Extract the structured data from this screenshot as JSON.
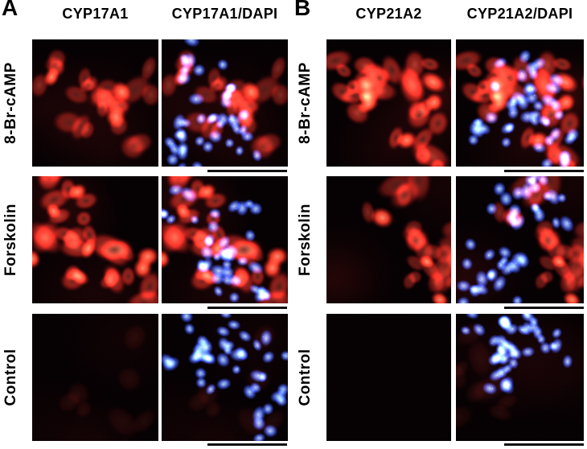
{
  "figure": {
    "type": "immunofluorescence-micrograph-grid",
    "panels": [
      {
        "label": "A",
        "column_headers": [
          "CYP17A1",
          "CYP17A1/DAPI"
        ],
        "row_labels": [
          "8-Br-cAMP",
          "Forskolin",
          "Control"
        ]
      },
      {
        "label": "B",
        "column_headers": [
          "CYP21A2",
          "CYP21A2/DAPI"
        ],
        "row_labels": [
          "8-Br-cAMP",
          "Forskolin",
          "Control"
        ]
      }
    ],
    "colors": {
      "red_stain": "#e23428",
      "dapi_blue": "#3f6cf0",
      "tile_background": "#060103",
      "scale_bar": "#111111",
      "page_background": "#ffffff",
      "text": "#000000"
    },
    "scale_bars": {
      "count": 6,
      "label": "",
      "color": "#111111"
    },
    "micrographs": [
      {
        "panel": "A",
        "treatment": "8-Br-cAMP",
        "channel": "CYP17A1",
        "red": "moderate",
        "dapi": false
      },
      {
        "panel": "A",
        "treatment": "8-Br-cAMP",
        "channel": "CYP17A1/DAPI",
        "red": "moderate",
        "dapi": true
      },
      {
        "panel": "A",
        "treatment": "Forskolin",
        "channel": "CYP17A1",
        "red": "strong",
        "dapi": false
      },
      {
        "panel": "A",
        "treatment": "Forskolin",
        "channel": "CYP17A1/DAPI",
        "red": "strong",
        "dapi": true
      },
      {
        "panel": "A",
        "treatment": "Control",
        "channel": "CYP17A1",
        "red": "faint",
        "dapi": false
      },
      {
        "panel": "A",
        "treatment": "Control",
        "channel": "CYP17A1/DAPI",
        "red": "faint",
        "dapi": true
      },
      {
        "panel": "B",
        "treatment": "8-Br-cAMP",
        "channel": "CYP21A2",
        "red": "strong",
        "dapi": false
      },
      {
        "panel": "B",
        "treatment": "8-Br-cAMP",
        "channel": "CYP21A2/DAPI",
        "red": "strong",
        "dapi": true
      },
      {
        "panel": "B",
        "treatment": "Forskolin",
        "channel": "CYP21A2",
        "red": "moderate",
        "dapi": false
      },
      {
        "panel": "B",
        "treatment": "Forskolin",
        "channel": "CYP21A2/DAPI",
        "red": "moderate",
        "dapi": true
      },
      {
        "panel": "B",
        "treatment": "Control",
        "channel": "CYP21A2",
        "red": "none",
        "dapi": false
      },
      {
        "panel": "B",
        "treatment": "Control",
        "channel": "CYP21A2/DAPI",
        "red": "faint",
        "dapi": true
      }
    ]
  }
}
